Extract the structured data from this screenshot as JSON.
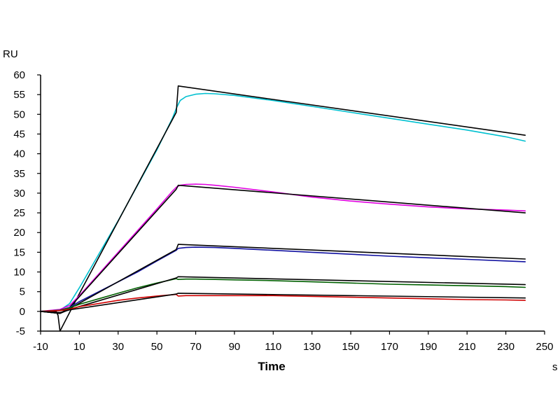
{
  "chart_data": {
    "type": "line",
    "title": "",
    "xlabel": "Time",
    "x_unit": "s",
    "ylabel": "",
    "y_unit": "RU",
    "xlim": [
      -10,
      250
    ],
    "ylim": [
      -5,
      60
    ],
    "xticks": [
      -10,
      10,
      30,
      50,
      70,
      90,
      110,
      130,
      150,
      170,
      190,
      210,
      230,
      250
    ],
    "yticks": [
      -5,
      0,
      5,
      10,
      15,
      20,
      25,
      30,
      35,
      40,
      45,
      50,
      55,
      60
    ],
    "xtick_labels": [
      "-10",
      "10",
      "30",
      "50",
      "70",
      "90",
      "110",
      "130",
      "150",
      "170",
      "190",
      "210",
      "230",
      "250"
    ],
    "ytick_labels": [
      "-5",
      "0",
      "5",
      "10",
      "15",
      "20",
      "25",
      "30",
      "35",
      "40",
      "45",
      "50",
      "55",
      "60"
    ],
    "grid": false,
    "legend": "none",
    "series": [
      {
        "color": "#00c0d0",
        "x": [
          -10,
          0,
          5,
          10,
          20,
          30,
          40,
          50,
          58,
          60,
          62,
          65,
          70,
          75,
          80,
          90,
          110,
          130,
          150,
          170,
          190,
          210,
          230,
          240
        ],
        "y": [
          0,
          0.3,
          2,
          6,
          14.5,
          23,
          32,
          41,
          49,
          51.5,
          53.5,
          54.5,
          55.1,
          55.3,
          55.2,
          54.8,
          53.5,
          52,
          50.5,
          49,
          47.5,
          46,
          44.3,
          43.2
        ]
      },
      {
        "color": "#000000",
        "x": [
          -10,
          -2,
          -1,
          0,
          10,
          60,
          61,
          240
        ],
        "y": [
          0,
          0,
          -1,
          -5,
          4.5,
          50.5,
          57.2,
          44.7
        ]
      },
      {
        "color": "#e000e0",
        "x": [
          -10,
          0,
          5,
          10,
          20,
          30,
          40,
          50,
          58,
          60,
          62,
          65,
          70,
          75,
          80,
          90,
          110,
          130,
          150,
          170,
          190,
          210,
          230,
          240
        ],
        "y": [
          0,
          0.5,
          1.5,
          4,
          9.5,
          15,
          20.5,
          26,
          30.5,
          31.5,
          32,
          32.2,
          32.3,
          32.2,
          32,
          31.5,
          30.3,
          29,
          28,
          27.2,
          26.5,
          26,
          25.7,
          25.5
        ]
      },
      {
        "color": "#000000",
        "x": [
          -10,
          0,
          5,
          60,
          61,
          240
        ],
        "y": [
          0,
          -0.5,
          1,
          31,
          32,
          25
        ]
      },
      {
        "color": "#1010a0",
        "x": [
          -10,
          0,
          5,
          10,
          20,
          30,
          40,
          50,
          60,
          61,
          65,
          70,
          80,
          90,
          110,
          130,
          150,
          170,
          190,
          210,
          230,
          240
        ],
        "y": [
          0,
          0.3,
          1,
          2.5,
          5,
          7.5,
          10,
          12.8,
          15.5,
          16,
          16.2,
          16.3,
          16.2,
          16,
          15.5,
          15,
          14.5,
          14,
          13.6,
          13.2,
          12.8,
          12.6
        ]
      },
      {
        "color": "#000000",
        "x": [
          -10,
          0,
          5,
          60,
          61,
          240
        ],
        "y": [
          0,
          -0.5,
          0.7,
          15.7,
          17,
          13.3
        ]
      },
      {
        "color": "#006000",
        "x": [
          -10,
          0,
          5,
          10,
          20,
          30,
          40,
          50,
          60,
          61,
          65,
          70,
          80,
          90,
          110,
          130,
          150,
          170,
          190,
          210,
          230,
          240
        ],
        "y": [
          0,
          0.3,
          0.9,
          1.8,
          3.2,
          4.6,
          6,
          7.2,
          8.3,
          8.1,
          8.2,
          8.2,
          8.1,
          8,
          7.8,
          7.5,
          7.2,
          6.9,
          6.7,
          6.5,
          6.3,
          6.1
        ]
      },
      {
        "color": "#000000",
        "x": [
          -10,
          0,
          5,
          60,
          61,
          240
        ],
        "y": [
          0,
          -0.5,
          0.5,
          8.5,
          8.8,
          6.8
        ]
      },
      {
        "color": "#d00000",
        "x": [
          -10,
          0,
          5,
          10,
          20,
          30,
          40,
          50,
          60,
          61,
          65,
          70,
          90,
          110,
          130,
          150,
          170,
          190,
          210,
          230,
          240
        ],
        "y": [
          0,
          0.2,
          0.6,
          1.2,
          2,
          2.8,
          3.4,
          3.9,
          4.3,
          3.9,
          4,
          4,
          4,
          4,
          3.8,
          3.6,
          3.4,
          3.2,
          3,
          2.9,
          2.8
        ]
      },
      {
        "color": "#000000",
        "x": [
          -10,
          0,
          5,
          60,
          61,
          240
        ],
        "y": [
          0,
          -0.3,
          0.4,
          4.4,
          4.6,
          3.4
        ]
      }
    ]
  }
}
